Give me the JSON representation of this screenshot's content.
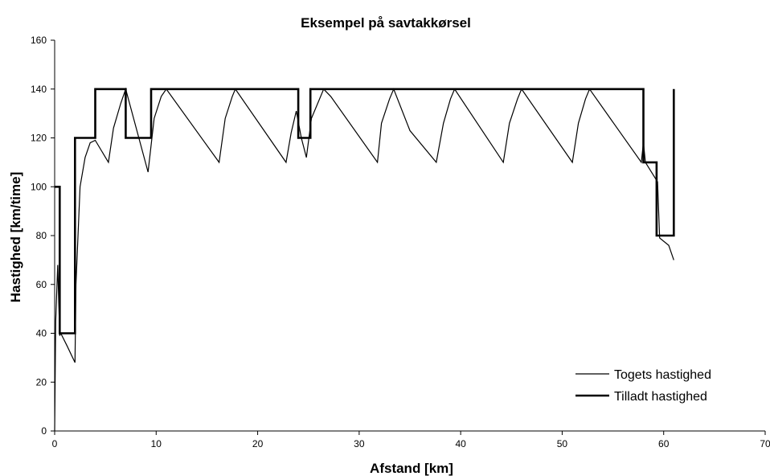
{
  "chart_data": {
    "type": "line",
    "title": "Eksempel på savtakkørsel",
    "xlabel": "Afstand [km]",
    "ylabel": "Hastighed [km/time]",
    "xlim": [
      0,
      70
    ],
    "ylim": [
      0,
      160
    ],
    "x_ticks": [
      "0",
      "10",
      "20",
      "30",
      "40",
      "50",
      "60",
      "70"
    ],
    "y_ticks": [
      "0",
      "20",
      "40",
      "60",
      "80",
      "100",
      "120",
      "140",
      "160"
    ],
    "grid": false,
    "legend_position": "bottom-right",
    "series": [
      {
        "name": "Togets hastighed",
        "style": "solid-thin",
        "x": [
          0,
          0.1,
          0.3,
          0.5,
          0.6,
          1.2,
          2.0,
          2.1,
          2.5,
          3.0,
          3.5,
          4.0,
          5.3,
          5.8,
          6.5,
          7.0,
          9.2,
          9.8,
          10.5,
          11.0,
          16.2,
          16.8,
          17.5,
          17.8,
          22.8,
          23.3,
          23.8,
          24.3,
          24.8,
          25.3,
          26.5,
          27.2,
          31.8,
          32.2,
          33.0,
          33.4,
          35.0,
          37.6,
          38.3,
          39.0,
          39.4,
          44.2,
          44.8,
          45.6,
          46.0,
          51.0,
          51.6,
          52.3,
          52.7,
          57.8,
          58.0,
          58.2,
          59.4,
          59.6,
          60.5,
          61.0
        ],
        "y": [
          0,
          45,
          68,
          39,
          40,
          35,
          28,
          60,
          100,
          112,
          118,
          119,
          110,
          124,
          134,
          140,
          106,
          128,
          137,
          140,
          110,
          128,
          137,
          140,
          110,
          122,
          131,
          120,
          112,
          128,
          140,
          137,
          110,
          126,
          136,
          140,
          123,
          110,
          126,
          136,
          140,
          110,
          126,
          136,
          140,
          110,
          126,
          136,
          140,
          110,
          118,
          110,
          102,
          79,
          76,
          70
        ]
      },
      {
        "name": "Tilladt hastighed",
        "style": "bold-step",
        "x": [
          0,
          0.5,
          0.5,
          0.6,
          0.6,
          2.0,
          2.0,
          4.0,
          4.0,
          7.0,
          7.0,
          9.5,
          9.5,
          24.0,
          24.0,
          25.2,
          25.2,
          58.0,
          58.0,
          59.3,
          59.3,
          61.0,
          61.0
        ],
        "y": [
          100,
          100,
          40,
          40,
          40,
          40,
          120,
          120,
          140,
          140,
          120,
          120,
          140,
          140,
          120,
          120,
          140,
          140,
          110,
          110,
          80,
          80,
          140
        ]
      }
    ]
  }
}
